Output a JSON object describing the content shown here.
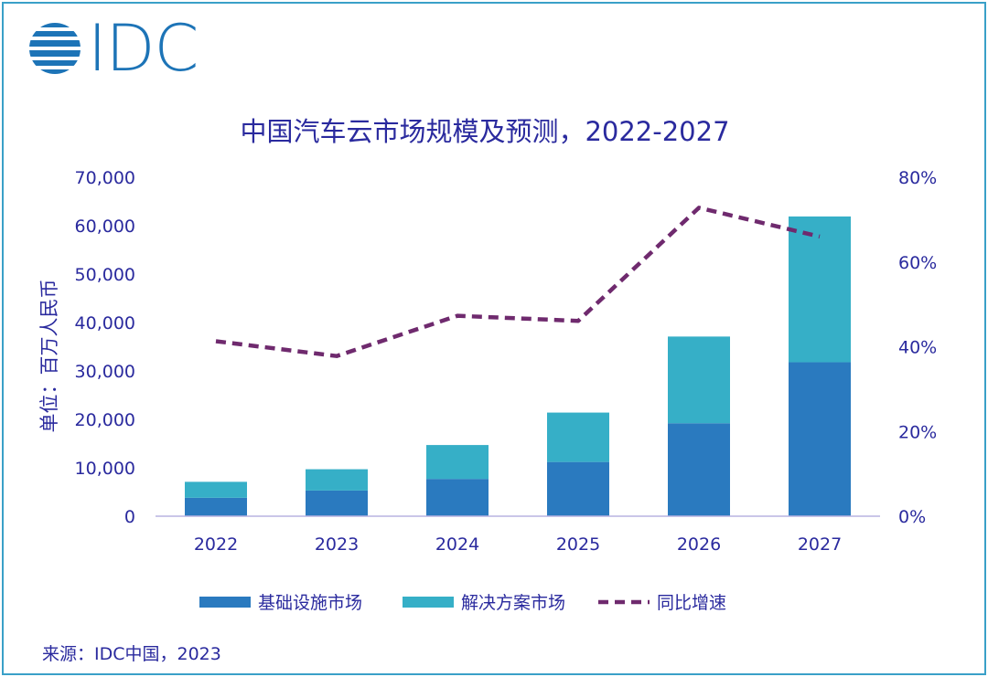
{
  "logo": {
    "icon": "idc-globe-icon",
    "text": "IDC"
  },
  "source": "来源：IDC中国，2023",
  "colors": {
    "infrastructure": "#2a7abf",
    "solution": "#36afc7",
    "growth": "#6f2a6e",
    "text": "#2a2a9e",
    "axis": "#b9b3e0",
    "frame": "#3aa0c8"
  },
  "chart_data": {
    "type": "bar",
    "stacked": true,
    "title": "中国汽车云市场规模及预测，2022-2027",
    "ylabel": "单位：百万人民币",
    "xlabel": "",
    "categories": [
      "2022",
      "2023",
      "2024",
      "2025",
      "2026",
      "2027"
    ],
    "ylim": [
      0,
      70000
    ],
    "y_ticks": [
      "0",
      "10,000",
      "20,000",
      "30,000",
      "40,000",
      "50,000",
      "60,000",
      "70,000"
    ],
    "y2lim": [
      0,
      80
    ],
    "y2_ticks": [
      "0%",
      "20%",
      "40%",
      "60%",
      "80%"
    ],
    "series": [
      {
        "name": "基础设施市场",
        "type": "bar",
        "axis": "left",
        "values": [
          3800,
          5300,
          7700,
          11200,
          19200,
          31800
        ]
      },
      {
        "name": "解决方案市场",
        "type": "bar",
        "axis": "left",
        "values": [
          3300,
          4400,
          7000,
          10200,
          17900,
          30100
        ]
      },
      {
        "name": "同比增速",
        "type": "line",
        "style": "dashed",
        "axis": "right",
        "values": [
          41.3,
          37.8,
          47.3,
          46.1,
          72.8,
          66.0
        ]
      }
    ],
    "grid": false,
    "legend": "bottom"
  }
}
